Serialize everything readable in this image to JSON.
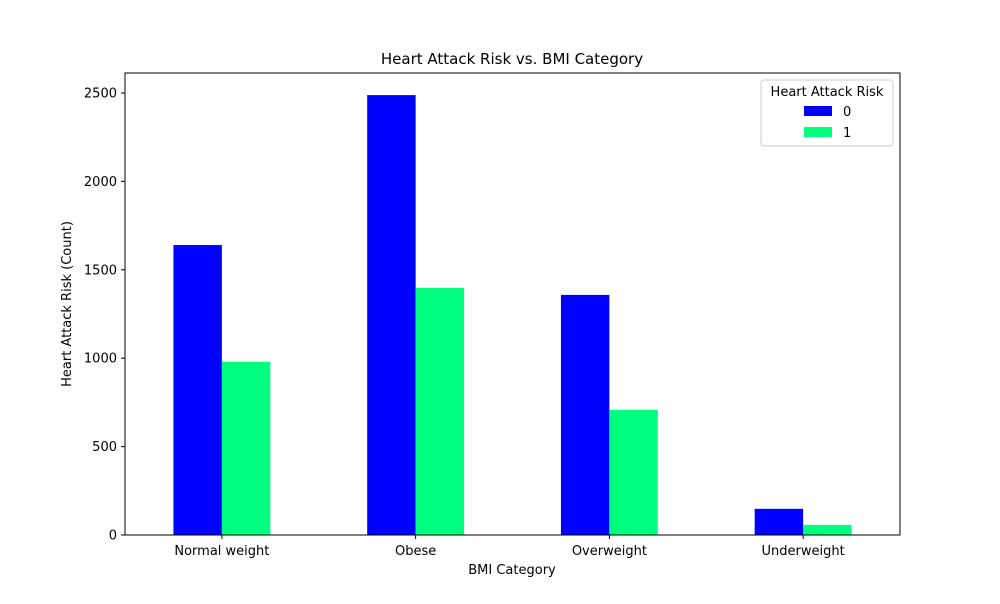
{
  "chart_data": {
    "type": "bar",
    "title": "Heart Attack Risk vs. BMI Category",
    "xlabel": "BMI Category",
    "ylabel": "Heart Attack Risk (Count)",
    "categories": [
      "Normal weight",
      "Obese",
      "Overweight",
      "Underweight"
    ],
    "series": [
      {
        "name": "0",
        "color": "#0000ff",
        "values": [
          1640,
          2488,
          1358,
          148
        ]
      },
      {
        "name": "1",
        "color": "#00ff7f",
        "values": [
          980,
          1398,
          708,
          57
        ]
      }
    ],
    "ylim": [
      0,
      2613
    ],
    "yticks": [
      0,
      500,
      1000,
      1500,
      2000,
      2500
    ],
    "legend": {
      "title": "Heart Attack Risk",
      "placement": "top-right"
    },
    "grid": false
  }
}
